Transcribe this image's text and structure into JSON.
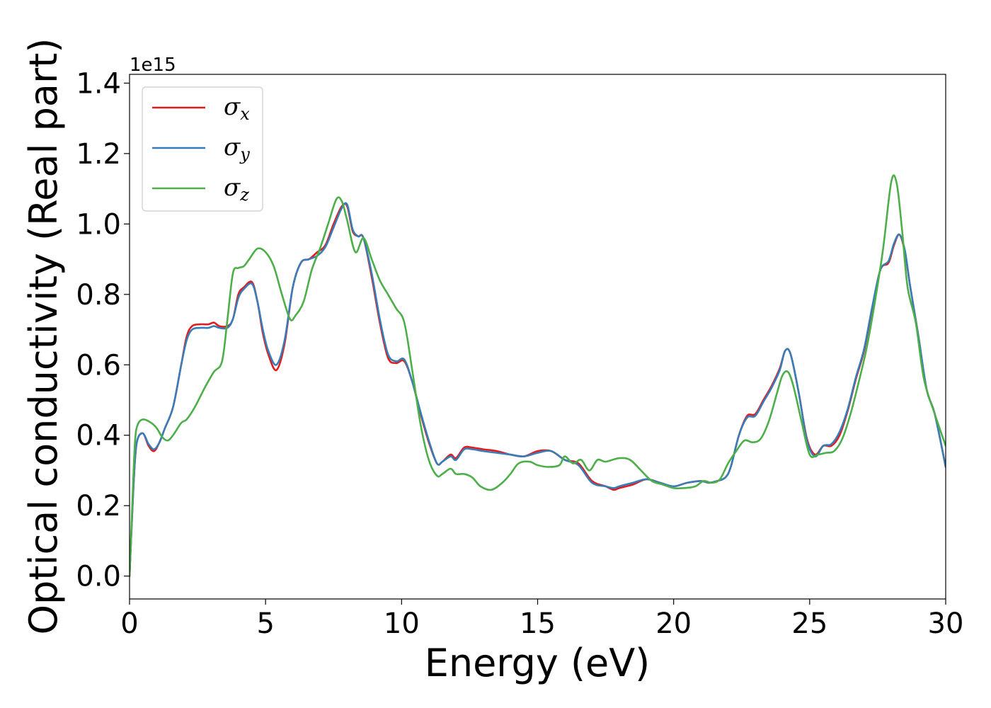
{
  "chart_data": {
    "type": "line",
    "title": "",
    "xlabel": "Energy (eV)",
    "ylabel": "Optical conductivity (Real part)",
    "y_offset_text": "1e15",
    "xlim": [
      0,
      30
    ],
    "ylim": [
      -0.065,
      1.425
    ],
    "x_ticks": [
      0,
      5,
      10,
      15,
      20,
      25,
      30
    ],
    "x_tick_labels": [
      "0",
      "5",
      "10",
      "15",
      "20",
      "25",
      "30"
    ],
    "y_ticks": [
      0.0,
      0.2,
      0.4,
      0.6,
      0.8,
      1.0,
      1.2,
      1.4
    ],
    "y_tick_labels": [
      "0.0",
      "0.2",
      "0.4",
      "0.6",
      "0.8",
      "1.0",
      "1.2",
      "1.4"
    ],
    "grid": false,
    "legend_position": "top-left",
    "series": [
      {
        "name": "σx",
        "symbol": "σ",
        "subscript": "x",
        "color": "#e41a1c",
        "x": [
          0,
          0.1,
          0.2,
          0.3,
          0.5,
          0.7,
          0.9,
          1.1,
          1.3,
          1.6,
          1.9,
          2.1,
          2.3,
          2.6,
          2.9,
          3.1,
          3.3,
          3.6,
          3.8,
          4.0,
          4.2,
          4.5,
          4.7,
          4.9,
          5.1,
          5.4,
          5.7,
          6.0,
          6.3,
          6.6,
          6.9,
          7.2,
          7.5,
          7.8,
          8.0,
          8.2,
          8.4,
          8.6,
          8.9,
          9.2,
          9.5,
          9.8,
          10.1,
          10.4,
          10.7,
          11.0,
          11.3,
          11.5,
          11.8,
          12.0,
          12.3,
          12.6,
          13.0,
          13.5,
          14.0,
          14.5,
          15.0,
          15.5,
          16.0,
          16.5,
          17.0,
          17.5,
          17.8,
          18.0,
          18.5,
          19.0,
          19.5,
          20.0,
          20.5,
          21.0,
          21.3,
          21.6,
          21.9,
          22.1,
          22.4,
          22.7,
          23.0,
          23.3,
          23.6,
          23.9,
          24.1,
          24.3,
          24.6,
          24.9,
          25.2,
          25.5,
          25.8,
          26.1,
          26.4,
          26.7,
          27.0,
          27.3,
          27.6,
          27.9,
          28.1,
          28.3,
          28.5,
          28.7,
          29.0,
          29.3,
          29.6,
          30.0
        ],
        "values": [
          0.0,
          0.18,
          0.33,
          0.39,
          0.405,
          0.37,
          0.355,
          0.38,
          0.42,
          0.48,
          0.6,
          0.68,
          0.71,
          0.715,
          0.715,
          0.72,
          0.71,
          0.71,
          0.73,
          0.8,
          0.82,
          0.835,
          0.78,
          0.69,
          0.63,
          0.585,
          0.66,
          0.82,
          0.89,
          0.9,
          0.92,
          0.94,
          1.0,
          1.05,
          1.05,
          0.98,
          0.965,
          0.96,
          0.85,
          0.72,
          0.62,
          0.605,
          0.61,
          0.55,
          0.46,
          0.38,
          0.32,
          0.325,
          0.345,
          0.335,
          0.365,
          0.365,
          0.36,
          0.355,
          0.345,
          0.34,
          0.355,
          0.355,
          0.33,
          0.32,
          0.27,
          0.255,
          0.245,
          0.25,
          0.26,
          0.275,
          0.265,
          0.255,
          0.265,
          0.27,
          0.265,
          0.27,
          0.28,
          0.31,
          0.4,
          0.455,
          0.46,
          0.5,
          0.54,
          0.59,
          0.64,
          0.63,
          0.52,
          0.39,
          0.345,
          0.37,
          0.37,
          0.4,
          0.47,
          0.56,
          0.64,
          0.76,
          0.87,
          0.89,
          0.94,
          0.97,
          0.92,
          0.82,
          0.68,
          0.53,
          0.46,
          0.31
        ]
      },
      {
        "name": "σy",
        "symbol": "σ",
        "subscript": "y",
        "color": "#377eb8",
        "x": [
          0,
          0.1,
          0.2,
          0.3,
          0.5,
          0.7,
          0.9,
          1.1,
          1.3,
          1.6,
          1.9,
          2.1,
          2.3,
          2.6,
          2.9,
          3.1,
          3.3,
          3.6,
          3.8,
          4.0,
          4.2,
          4.5,
          4.7,
          4.9,
          5.1,
          5.4,
          5.7,
          6.0,
          6.3,
          6.6,
          6.9,
          7.2,
          7.5,
          7.8,
          8.0,
          8.2,
          8.4,
          8.6,
          8.9,
          9.2,
          9.5,
          9.8,
          10.1,
          10.4,
          10.7,
          11.0,
          11.3,
          11.5,
          11.8,
          12.0,
          12.3,
          12.6,
          13.0,
          13.5,
          14.0,
          14.5,
          15.0,
          15.5,
          16.0,
          16.5,
          17.0,
          17.5,
          17.8,
          18.0,
          18.5,
          19.0,
          19.5,
          20.0,
          20.5,
          21.0,
          21.3,
          21.6,
          21.9,
          22.1,
          22.4,
          22.7,
          23.0,
          23.3,
          23.6,
          23.9,
          24.1,
          24.3,
          24.6,
          24.9,
          25.2,
          25.5,
          25.8,
          26.1,
          26.4,
          26.7,
          27.0,
          27.3,
          27.6,
          27.9,
          28.1,
          28.3,
          28.5,
          28.7,
          29.0,
          29.3,
          29.6,
          30.0
        ],
        "values": [
          0.0,
          0.18,
          0.33,
          0.39,
          0.405,
          0.375,
          0.36,
          0.38,
          0.42,
          0.48,
          0.6,
          0.67,
          0.7,
          0.705,
          0.705,
          0.71,
          0.705,
          0.705,
          0.73,
          0.79,
          0.815,
          0.83,
          0.78,
          0.7,
          0.64,
          0.6,
          0.67,
          0.82,
          0.89,
          0.9,
          0.91,
          0.935,
          0.99,
          1.045,
          1.055,
          0.985,
          0.965,
          0.96,
          0.86,
          0.73,
          0.63,
          0.61,
          0.615,
          0.55,
          0.465,
          0.385,
          0.32,
          0.325,
          0.34,
          0.33,
          0.36,
          0.36,
          0.355,
          0.35,
          0.345,
          0.34,
          0.35,
          0.355,
          0.33,
          0.315,
          0.265,
          0.255,
          0.25,
          0.255,
          0.265,
          0.275,
          0.265,
          0.255,
          0.265,
          0.27,
          0.265,
          0.27,
          0.28,
          0.31,
          0.4,
          0.45,
          0.455,
          0.495,
          0.535,
          0.585,
          0.64,
          0.63,
          0.52,
          0.385,
          0.34,
          0.37,
          0.375,
          0.41,
          0.475,
          0.565,
          0.645,
          0.765,
          0.87,
          0.895,
          0.945,
          0.97,
          0.925,
          0.82,
          0.68,
          0.53,
          0.46,
          0.31
        ]
      },
      {
        "name": "σz",
        "symbol": "σ",
        "subscript": "z",
        "color": "#4daf4a",
        "x": [
          0,
          0.1,
          0.2,
          0.3,
          0.5,
          0.8,
          1.0,
          1.2,
          1.4,
          1.6,
          1.9,
          2.1,
          2.4,
          2.8,
          3.1,
          3.4,
          3.6,
          3.8,
          4.0,
          4.2,
          4.4,
          4.7,
          5.0,
          5.3,
          5.6,
          5.9,
          6.1,
          6.4,
          6.7,
          7.0,
          7.3,
          7.6,
          7.8,
          8.0,
          8.3,
          8.6,
          8.9,
          9.2,
          9.5,
          9.8,
          10.1,
          10.4,
          10.7,
          11.0,
          11.3,
          11.5,
          11.8,
          12.0,
          12.3,
          12.6,
          12.9,
          13.3,
          13.7,
          14.0,
          14.3,
          14.7,
          15.0,
          15.4,
          15.8,
          16.0,
          16.3,
          16.6,
          16.9,
          17.2,
          17.5,
          18.0,
          18.4,
          18.8,
          19.2,
          19.6,
          20.0,
          20.4,
          20.8,
          21.1,
          21.4,
          21.7,
          22.0,
          22.3,
          22.6,
          22.9,
          23.2,
          23.5,
          23.8,
          24.0,
          24.2,
          24.4,
          24.7,
          25.0,
          25.3,
          25.6,
          25.9,
          26.2,
          26.5,
          26.8,
          27.1,
          27.4,
          27.7,
          28.0,
          28.2,
          28.4,
          28.6,
          28.9,
          29.2,
          29.6,
          30.0
        ],
        "values": [
          0.0,
          0.2,
          0.38,
          0.43,
          0.445,
          0.435,
          0.42,
          0.395,
          0.385,
          0.4,
          0.435,
          0.445,
          0.48,
          0.54,
          0.58,
          0.61,
          0.73,
          0.86,
          0.875,
          0.88,
          0.9,
          0.93,
          0.92,
          0.88,
          0.8,
          0.73,
          0.74,
          0.78,
          0.87,
          0.93,
          1.0,
          1.07,
          1.065,
          1.01,
          0.92,
          0.96,
          0.9,
          0.84,
          0.8,
          0.76,
          0.72,
          0.58,
          0.43,
          0.33,
          0.285,
          0.29,
          0.305,
          0.29,
          0.29,
          0.28,
          0.255,
          0.245,
          0.265,
          0.29,
          0.32,
          0.325,
          0.315,
          0.31,
          0.315,
          0.34,
          0.32,
          0.33,
          0.3,
          0.33,
          0.325,
          0.335,
          0.33,
          0.3,
          0.27,
          0.26,
          0.25,
          0.25,
          0.255,
          0.27,
          0.265,
          0.275,
          0.32,
          0.355,
          0.385,
          0.38,
          0.39,
          0.44,
          0.52,
          0.57,
          0.58,
          0.54,
          0.44,
          0.345,
          0.345,
          0.35,
          0.355,
          0.39,
          0.46,
          0.55,
          0.65,
          0.78,
          0.93,
          1.12,
          1.115,
          0.98,
          0.82,
          0.72,
          0.56,
          0.46,
          0.37
        ]
      }
    ]
  }
}
